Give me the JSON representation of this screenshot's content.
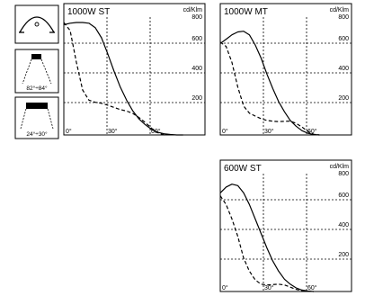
{
  "icons": [
    {
      "name": "beam-shape-icon"
    },
    {
      "name": "narrow-fixture-icon",
      "label": "82°÷84°"
    },
    {
      "name": "wide-fixture-icon",
      "label": "24°÷30°"
    }
  ],
  "colors": {
    "line": "#000000",
    "grid": "#000000",
    "background": "#ffffff"
  },
  "chart_data": [
    {
      "type": "line",
      "title": "1000W ST",
      "unit_label": "cd/Klm",
      "x_tick_labels": [
        "0°",
        "30°",
        "60°"
      ],
      "y_tick_labels": [
        "800",
        "600",
        "400",
        "200"
      ],
      "xlim": [
        0,
        90
      ],
      "ylim": [
        0,
        800
      ],
      "grid": true,
      "series": [
        {
          "style": "solid",
          "x": [
            0,
            4,
            8,
            12,
            16,
            20,
            24,
            28,
            32,
            36,
            40,
            44,
            48,
            52,
            56,
            60,
            64,
            68,
            72,
            76
          ],
          "y": [
            760,
            770,
            775,
            775,
            770,
            740,
            670,
            560,
            440,
            330,
            240,
            165,
            110,
            70,
            38,
            18,
            8,
            3,
            0,
            0
          ]
        },
        {
          "style": "dashed",
          "x": [
            0,
            4,
            8,
            12,
            16,
            20,
            24,
            28,
            32,
            36,
            40,
            44,
            48,
            52,
            56,
            60,
            64
          ],
          "y": [
            775,
            720,
            500,
            310,
            240,
            225,
            218,
            205,
            190,
            175,
            165,
            148,
            120,
            85,
            45,
            15,
            0
          ]
        }
      ]
    },
    {
      "type": "line",
      "title": "1000W MT",
      "unit_label": "cd/Klm",
      "x_tick_labels": [
        "0°",
        "30°",
        "60°"
      ],
      "y_tick_labels": [
        "800",
        "600",
        "400",
        "200"
      ],
      "xlim": [
        0,
        90
      ],
      "ylim": [
        0,
        800
      ],
      "grid": true,
      "series": [
        {
          "style": "solid",
          "x": [
            0,
            4,
            8,
            12,
            16,
            20,
            24,
            28,
            32,
            36,
            40,
            44,
            48,
            52,
            56,
            60,
            64,
            68
          ],
          "y": [
            630,
            660,
            690,
            710,
            715,
            690,
            620,
            530,
            420,
            320,
            230,
            160,
            100,
            60,
            30,
            12,
            3,
            0
          ]
        },
        {
          "style": "dashed",
          "x": [
            0,
            4,
            8,
            12,
            16,
            20,
            24,
            28,
            32,
            36,
            40,
            44,
            48,
            52,
            56,
            60,
            64,
            68
          ],
          "y": [
            640,
            610,
            500,
            330,
            200,
            150,
            130,
            112,
            100,
            95,
            92,
            94,
            95,
            80,
            55,
            25,
            5,
            0
          ]
        }
      ]
    },
    {
      "type": "line",
      "title": "600W ST",
      "unit_label": "cd/Klm",
      "x_tick_labels": [
        "0°",
        "30°",
        "60°"
      ],
      "y_tick_labels": [
        "800",
        "600",
        "400",
        "200"
      ],
      "xlim": [
        0,
        90
      ],
      "ylim": [
        0,
        800
      ],
      "grid": true,
      "series": [
        {
          "style": "solid",
          "x": [
            0,
            4,
            8,
            12,
            16,
            20,
            24,
            28,
            32,
            36,
            40,
            44,
            48,
            52,
            56,
            60,
            64
          ],
          "y": [
            680,
            720,
            740,
            730,
            680,
            600,
            500,
            400,
            300,
            210,
            140,
            85,
            50,
            25,
            10,
            3,
            0
          ]
        },
        {
          "style": "dashed",
          "x": [
            0,
            4,
            8,
            12,
            16,
            20,
            24,
            28,
            32,
            36,
            40,
            44,
            48,
            52,
            56,
            60,
            64
          ],
          "y": [
            660,
            600,
            500,
            380,
            230,
            140,
            80,
            50,
            45,
            48,
            50,
            45,
            30,
            15,
            5,
            1,
            0
          ]
        }
      ]
    }
  ]
}
